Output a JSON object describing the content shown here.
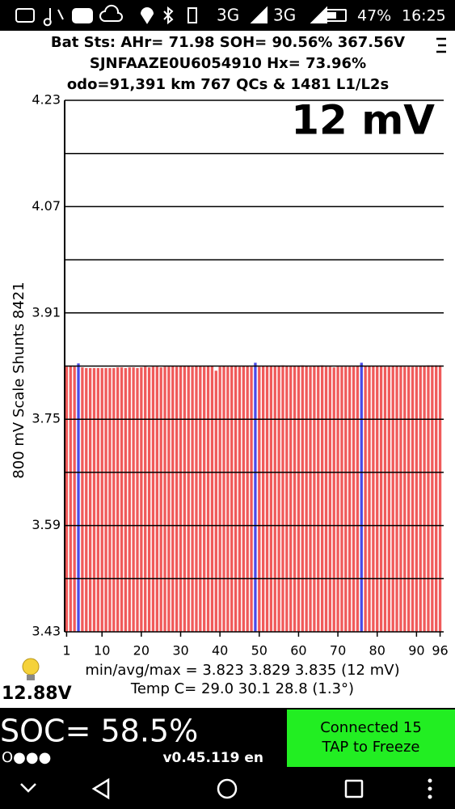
{
  "status_bar": {
    "network_1": "3G",
    "network_2": "3G",
    "battery": "47%",
    "time": "16:25"
  },
  "header": {
    "line_1": "Bat Sts: AHr= 71.98 SOH= 90.56% 367.56V",
    "line_2": "SJNFAAZE0U6054910   Hx= 73.96%",
    "line_3": "odo=91,391 km 767 QCs & 1481 L1/L2s"
  },
  "chart_data": {
    "type": "bar",
    "annotation": "12 mV",
    "y_label": "800 mV Scale   Shunts 8421",
    "x": [
      1,
      2,
      3,
      4,
      5,
      6,
      7,
      8,
      9,
      10,
      11,
      12,
      13,
      14,
      15,
      16,
      17,
      18,
      19,
      20,
      21,
      22,
      23,
      24,
      25,
      26,
      27,
      28,
      29,
      30,
      31,
      32,
      33,
      34,
      35,
      36,
      37,
      38,
      39,
      40,
      41,
      42,
      43,
      44,
      45,
      46,
      47,
      48,
      49,
      50,
      51,
      52,
      53,
      54,
      55,
      56,
      57,
      58,
      59,
      60,
      61,
      62,
      63,
      64,
      65,
      66,
      67,
      68,
      69,
      70,
      71,
      72,
      73,
      74,
      75,
      76,
      77,
      78,
      79,
      80,
      81,
      82,
      83,
      84,
      85,
      86,
      87,
      88,
      89,
      90,
      91,
      92,
      93,
      94,
      95,
      96
    ],
    "values": [
      3.829,
      3.83,
      3.829,
      3.834,
      3.828,
      3.827,
      3.827,
      3.827,
      3.827,
      3.827,
      3.827,
      3.827,
      3.827,
      3.828,
      3.828,
      3.827,
      3.828,
      3.828,
      3.827,
      3.828,
      3.829,
      3.828,
      3.829,
      3.829,
      3.828,
      3.829,
      3.829,
      3.83,
      3.829,
      3.83,
      3.83,
      3.83,
      3.829,
      3.83,
      3.83,
      3.829,
      3.83,
      3.83,
      3.823,
      3.829,
      3.83,
      3.829,
      3.83,
      3.83,
      3.829,
      3.83,
      3.83,
      3.829,
      3.835,
      3.829,
      3.83,
      3.83,
      3.83,
      3.83,
      3.83,
      3.831,
      3.83,
      3.83,
      3.83,
      3.83,
      3.831,
      3.83,
      3.829,
      3.83,
      3.83,
      3.831,
      3.829,
      3.829,
      3.828,
      3.829,
      3.829,
      3.829,
      3.829,
      3.829,
      3.83,
      3.835,
      3.83,
      3.83,
      3.83,
      3.83,
      3.83,
      3.829,
      3.829,
      3.83,
      3.83,
      3.83,
      3.829,
      3.829,
      3.829,
      3.829,
      3.83,
      3.83,
      3.831,
      3.831,
      3.831,
      3.831
    ],
    "color": "#f05a5a",
    "highlight_color": "#4a4ae8",
    "highlight": [
      4,
      49,
      76
    ],
    "xlim": [
      0.5,
      96.5
    ],
    "xticks": [
      1,
      10,
      20,
      30,
      40,
      50,
      60,
      70,
      80,
      90,
      96
    ],
    "ylim": [
      3.43,
      4.23
    ],
    "yticks": [
      3.43,
      3.59,
      3.75,
      3.91,
      4.07,
      4.23
    ],
    "minor_yticks": [
      3.51,
      3.67,
      3.83,
      3.99,
      4.15
    ],
    "grid": true
  },
  "stats": {
    "min_avg_max": "min/avg/max = 3.823 3.829 3.835  (12 mV)",
    "temp": "Temp C= 29.0  30.1  28.8  (1.3°)"
  },
  "footer": {
    "voltage": "12.88V",
    "soc": "SOC= 58.5%",
    "dots": "O●●●",
    "version": "v0.45.119 en",
    "button_line_1": "Connected 15",
    "button_line_2": "TAP to Freeze"
  }
}
